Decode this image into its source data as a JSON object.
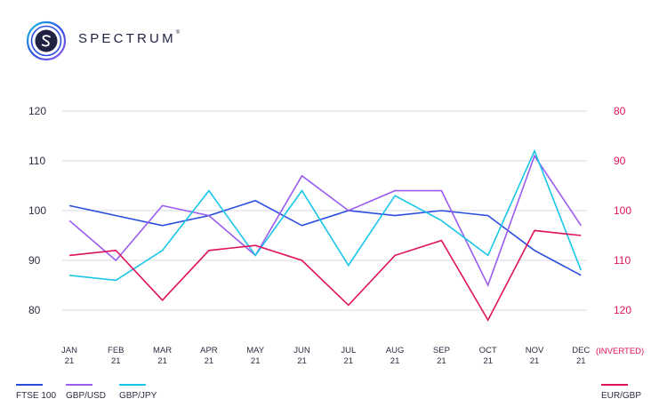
{
  "brand": {
    "name": "SPECTRUM",
    "mark": "®"
  },
  "chart_data": {
    "type": "line",
    "categories": [
      "JAN\n21",
      "FEB\n21",
      "MAR\n21",
      "APR\n21",
      "MAY\n21",
      "JUN\n21",
      "JUL\n21",
      "AUG\n21",
      "SEP\n21",
      "OCT\n21",
      "NOV\n21",
      "DEC\n21"
    ],
    "left_axis": {
      "ticks": [
        120,
        110,
        100,
        90,
        80
      ],
      "ylim": [
        75,
        120
      ]
    },
    "right_axis": {
      "ticks": [
        80,
        90,
        100,
        110,
        120
      ],
      "ylim": [
        80,
        125
      ],
      "inverted": true,
      "label": "(INVERTED)",
      "color": "#e0125c"
    },
    "grid": true,
    "series": [
      {
        "name": "FTSE 100",
        "axis": "left",
        "color": "#2a4de0",
        "values": [
          101,
          99,
          97,
          99,
          102,
          97,
          100,
          99,
          100,
          99,
          92,
          87
        ]
      },
      {
        "name": "GBP/USD",
        "axis": "left",
        "color": "#9a5cf0",
        "values": [
          98,
          90,
          101,
          99,
          91,
          107,
          100,
          104,
          104,
          85,
          111,
          97
        ]
      },
      {
        "name": "GBP/JPY",
        "axis": "left",
        "color": "#19c6e8",
        "values": [
          87,
          86,
          92,
          104,
          91,
          104,
          89,
          103,
          98,
          91,
          112,
          88
        ]
      },
      {
        "name": "EUR/GBP",
        "axis": "right",
        "color": "#e0125c",
        "values": [
          109,
          108,
          118,
          108,
          107,
          110,
          119,
          109,
          106,
          122,
          104,
          105
        ]
      }
    ],
    "legend_position": "bottom"
  }
}
